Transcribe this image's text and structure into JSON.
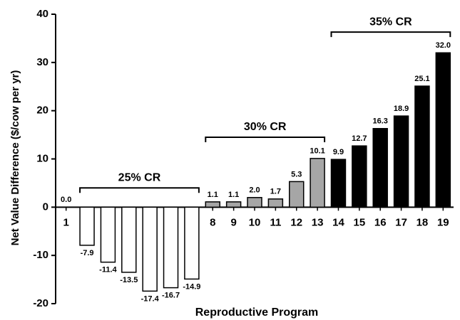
{
  "chart_data": {
    "type": "bar",
    "x_label": "Reproductive Program",
    "y_label": "Net Value Difference  ($/cow per yr)",
    "categories": [
      "1",
      "2",
      "3",
      "4",
      "5",
      "6",
      "7",
      "8",
      "9",
      "10",
      "11",
      "12",
      "13",
      "14",
      "15",
      "16",
      "17",
      "18",
      "19"
    ],
    "values": [
      0,
      -7.9,
      -11.4,
      -13.5,
      -17.4,
      -16.7,
      -14.9,
      1.1,
      1.1,
      2.0,
      1.7,
      5.3,
      10.1,
      9.9,
      12.7,
      16.3,
      18.9,
      25.1,
      32.0
    ],
    "value_labels": [
      "0.0",
      "-7.9",
      "-11.4",
      "-13.5",
      "-17.4",
      "-16.7",
      "-14.9",
      "1.1",
      "1.1",
      "2.0",
      "1.7",
      "5.3",
      "10.1",
      "9.9",
      "12.7",
      "16.3",
      "18.9",
      "25.1",
      "32.0"
    ],
    "colors": [
      "#ffffff",
      "#ffffff",
      "#ffffff",
      "#ffffff",
      "#ffffff",
      "#ffffff",
      "#ffffff",
      "#a6a6a6",
      "#a6a6a6",
      "#a6a6a6",
      "#a6a6a6",
      "#a6a6a6",
      "#a6a6a6",
      "#000000",
      "#000000",
      "#000000",
      "#000000",
      "#000000",
      "#000000"
    ],
    "ylim": [
      -20,
      40
    ],
    "yticks": [
      -20,
      -10,
      0,
      10,
      20,
      30,
      40
    ],
    "grid": false,
    "annotations": [
      {
        "text": "25% CR",
        "start": "2",
        "end": "7",
        "y": 4
      },
      {
        "text": "30% CR",
        "start": "8",
        "end": "13",
        "y": 14.5
      },
      {
        "text": "35% CR",
        "start": "14",
        "end": "19",
        "y": 36.3
      }
    ]
  }
}
